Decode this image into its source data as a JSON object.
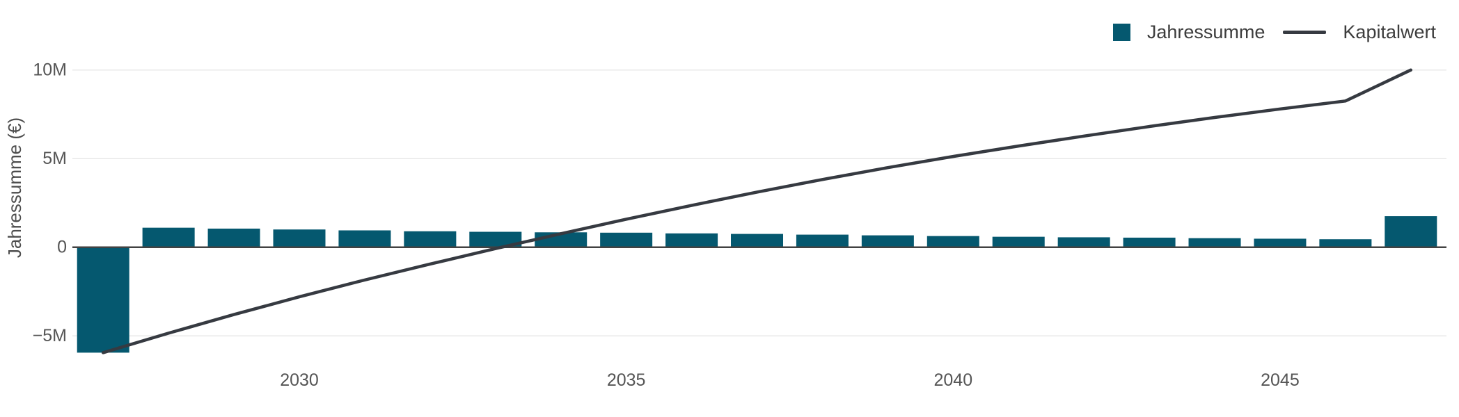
{
  "chart": {
    "colors": {
      "bar": "#05586f",
      "line": "#363a41",
      "axis": "#424242",
      "grid": "#e8e8e8",
      "tick_text": "#555555",
      "legend_text": "#3d3d3d"
    },
    "legend": {
      "items": [
        {
          "label": "Jahressumme",
          "marker": "square"
        },
        {
          "label": "Kapitalwert",
          "marker": "line"
        }
      ]
    }
  },
  "chart_data": {
    "type": "bar",
    "title": "",
    "xlabel": "",
    "ylabel": "Jahressumme (€)",
    "unit": "€ (millions)",
    "grid": true,
    "legend_position": "top-right",
    "ylim": [
      -6.5,
      11
    ],
    "xlim": [
      2026.5,
      2047.5
    ],
    "x": [
      2027,
      2028,
      2029,
      2030,
      2031,
      2032,
      2033,
      2034,
      2035,
      2036,
      2037,
      2038,
      2039,
      2040,
      2041,
      2042,
      2043,
      2044,
      2045,
      2046,
      2047
    ],
    "series": [
      {
        "name": "Jahressumme",
        "type": "bar",
        "color": "#05586f",
        "values_unit": "M",
        "values": [
          -5.95,
          1.1,
          1.05,
          1.0,
          0.95,
          0.9,
          0.87,
          0.84,
          0.82,
          0.78,
          0.75,
          0.71,
          0.67,
          0.63,
          0.59,
          0.56,
          0.54,
          0.51,
          0.48,
          0.45,
          1.75
        ]
      },
      {
        "name": "Kapitalwert",
        "type": "line",
        "color": "#363a41",
        "values_unit": "M",
        "values": [
          -5.95,
          -4.85,
          -3.8,
          -2.8,
          -1.85,
          -0.95,
          -0.08,
          0.76,
          1.58,
          2.36,
          3.11,
          3.82,
          4.49,
          5.12,
          5.71,
          6.27,
          6.81,
          7.32,
          7.8,
          8.25,
          10.0
        ]
      }
    ],
    "yticks": [
      {
        "value": 10,
        "label": "10M"
      },
      {
        "value": 5,
        "label": "5M"
      },
      {
        "value": 0,
        "label": "0"
      },
      {
        "value": -5,
        "label": "−5M"
      }
    ],
    "xticks": [
      {
        "value": 2030,
        "label": "2030"
      },
      {
        "value": 2035,
        "label": "2035"
      },
      {
        "value": 2040,
        "label": "2040"
      },
      {
        "value": 2045,
        "label": "2045"
      }
    ]
  }
}
